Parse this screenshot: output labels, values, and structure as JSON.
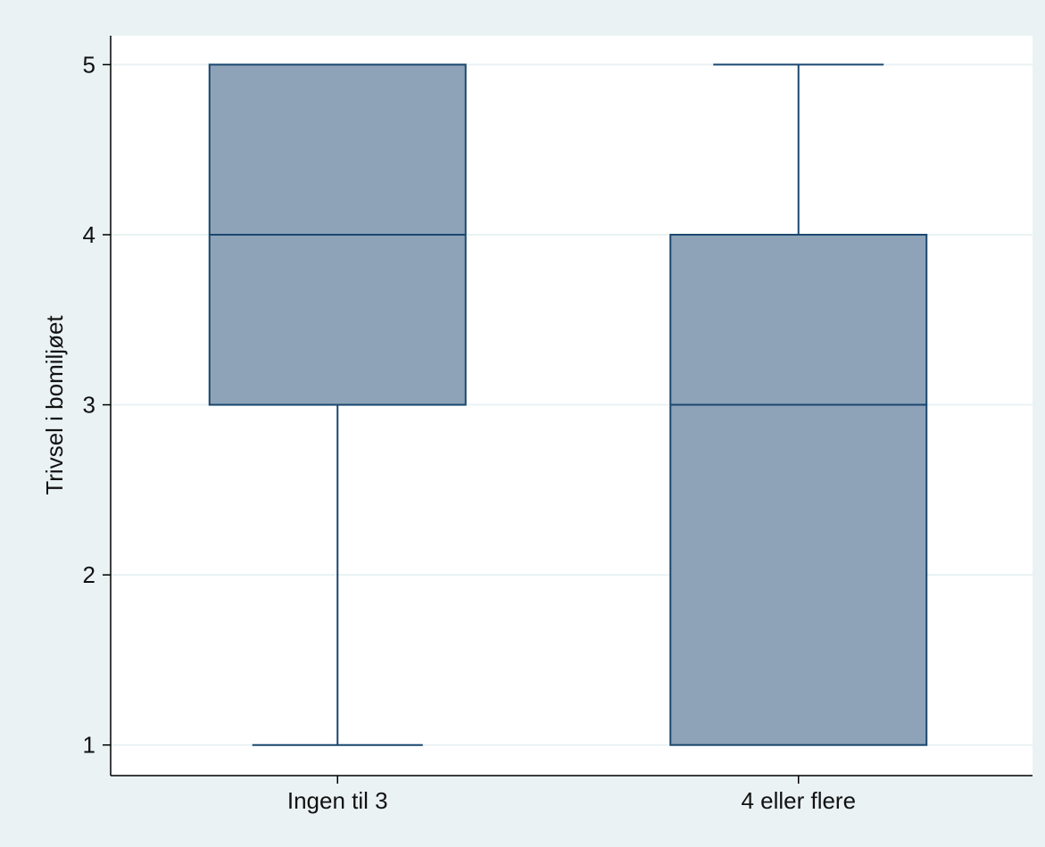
{
  "colors": {
    "outer_background": "#eaf2f3",
    "plot_background": "#ffffff",
    "gridline": "#eaf2f3",
    "box_fill": "#8ea3b8",
    "box_stroke": "#1a476f",
    "axis": "#000000"
  },
  "chart_data": {
    "type": "box",
    "title": "",
    "xlabel": "",
    "ylabel": "Trivsel i bomiljøet",
    "ylim": [
      0.82,
      5.17
    ],
    "yticks": [
      1,
      2,
      3,
      4,
      5
    ],
    "grid": true,
    "categories": [
      "Ingen til 3",
      "4 eller flere"
    ],
    "boxes": [
      {
        "category": "Ingen til 3",
        "whisker_low": 1,
        "q1": 3,
        "median": 4,
        "q3": 5,
        "whisker_high": 5
      },
      {
        "category": "4 eller flere",
        "whisker_low": 1,
        "q1": 1,
        "median": 3,
        "q3": 4,
        "whisker_high": 5
      }
    ]
  }
}
